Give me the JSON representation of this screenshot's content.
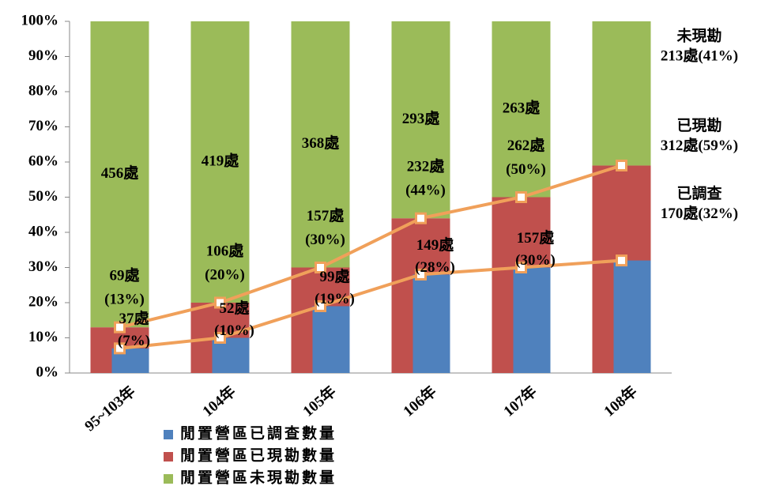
{
  "chart_data": {
    "type": "bar",
    "categories": [
      "95~103年",
      "104年",
      "105年",
      "106年",
      "107年",
      "108年"
    ],
    "ylim": [
      0,
      100
    ],
    "yticks": [
      {
        "value": 0,
        "label": "0%"
      },
      {
        "value": 10,
        "label": "10%"
      },
      {
        "value": 20,
        "label": "20%"
      },
      {
        "value": 30,
        "label": "30%"
      },
      {
        "value": 40,
        "label": "40%"
      },
      {
        "value": 50,
        "label": "50%"
      },
      {
        "value": 60,
        "label": "60%"
      },
      {
        "value": 70,
        "label": "70%"
      },
      {
        "value": 80,
        "label": "80%"
      },
      {
        "value": 90,
        "label": "90%"
      },
      {
        "value": 100,
        "label": "100%"
      }
    ],
    "line_color": "#f0a05a",
    "series": [
      {
        "name": "閒置營區已調查數量",
        "color": "#4f81bd",
        "values": [
          7,
          10,
          19,
          28,
          30,
          32
        ],
        "value_labels": [
          [
            "37處",
            "(7%)"
          ],
          [
            "52處",
            "(10%)"
          ],
          [
            "99處",
            "(19%)"
          ],
          [
            "149處",
            "(28%)"
          ],
          [
            "157處",
            "(30%)"
          ],
          [
            "170處(32%)"
          ]
        ],
        "end_label": "已調查"
      },
      {
        "name": "閒置營區已現勘數量",
        "color": "#c0504d",
        "values": [
          13,
          20,
          30,
          44,
          50,
          59
        ],
        "value_labels": [
          [
            "69處",
            "(13%)"
          ],
          [
            "106處",
            "(20%)"
          ],
          [
            "157處",
            "(30%)"
          ],
          [
            "232處",
            "(44%)"
          ],
          [
            "262處",
            "(50%)"
          ],
          [
            "312處(59%)"
          ]
        ],
        "end_label": "已現勘"
      },
      {
        "name": "閒置營區未現勘數量",
        "color": "#9bbb59",
        "values": [
          87,
          80,
          70,
          56,
          50,
          41
        ],
        "value_labels": [
          [
            "456處"
          ],
          [
            "419處"
          ],
          [
            "368處"
          ],
          [
            "293處"
          ],
          [
            "263處"
          ],
          [
            "213處(41%)"
          ]
        ],
        "end_label": "未現勘"
      }
    ]
  }
}
